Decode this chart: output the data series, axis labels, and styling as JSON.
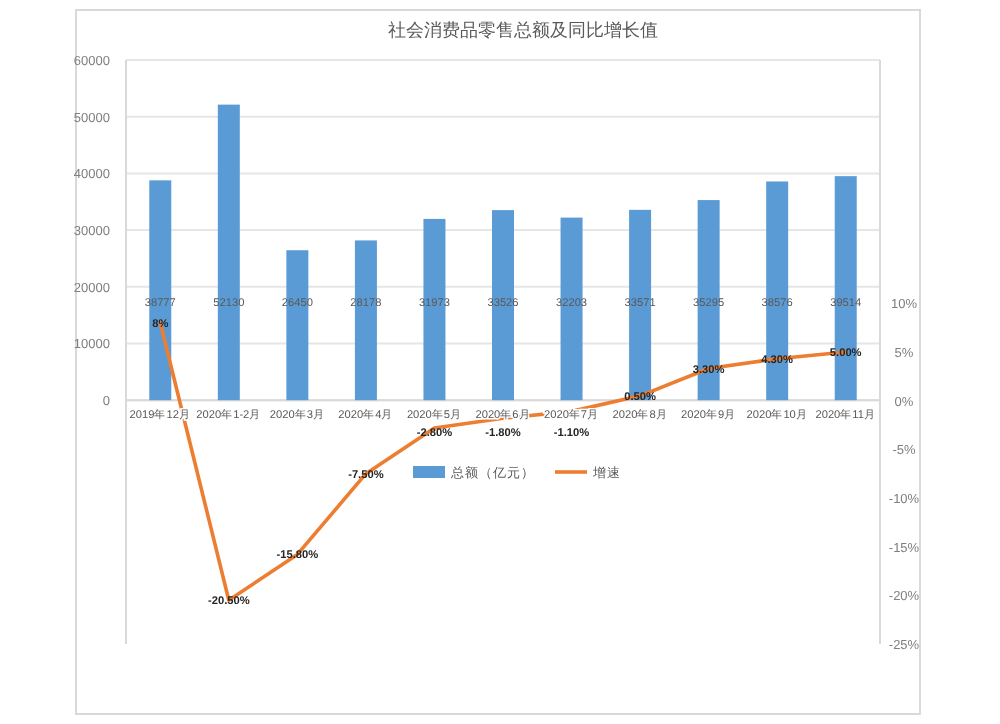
{
  "chart_data": {
    "type": "bar",
    "title": "社会消费品零售总额及同比增长值",
    "categories": [
      "2019年12月",
      "2020年1-2月",
      "2020年3月",
      "2020年4月",
      "2020年5月",
      "2020年6月",
      "2020年7月",
      "2020年8月",
      "2020年9月",
      "2020年10月",
      "2020年11月"
    ],
    "series": [
      {
        "name": "总额（亿元）",
        "color": "#5b9bd5",
        "values": [
          38777,
          52130,
          26450,
          28178,
          31973,
          33526,
          32203,
          33571,
          35295,
          38576,
          39514
        ],
        "value_labels": [
          "38777",
          "52130",
          "26450",
          "28178",
          "31973",
          "33526",
          "32203",
          "33571",
          "35295",
          "38576",
          "39514"
        ]
      },
      {
        "name": "增速",
        "type": "line",
        "axis": "y2",
        "color": "#ed7d31",
        "values": [
          8,
          -20.5,
          -15.8,
          -7.5,
          -2.8,
          -1.8,
          -1.1,
          0.5,
          3.3,
          4.3,
          5
        ],
        "value_labels": [
          "8%",
          "-20.50%",
          "-15.80%",
          "-7.50%",
          "-2.80%",
          "-1.80%",
          "-1.10%",
          "0.50%",
          "3.30%",
          "4.30%",
          "5.00%"
        ]
      }
    ],
    "ylim": [
      -43000,
      60000
    ],
    "yticks": [
      0,
      10000,
      20000,
      30000,
      40000,
      50000,
      60000
    ],
    "y2lim": [
      -25,
      35
    ],
    "y2ticks": [
      {
        "value": 10,
        "label": "10%"
      },
      {
        "value": 5,
        "label": "5%"
      },
      {
        "value": 0,
        "label": "0%"
      },
      {
        "value": -5,
        "label": "-5%"
      },
      {
        "value": -10,
        "label": "-10%"
      },
      {
        "value": -15,
        "label": "-15%"
      },
      {
        "value": -20,
        "label": "-20%"
      },
      {
        "value": -25,
        "label": "-25%"
      }
    ],
    "grid": "y",
    "legend": "center"
  }
}
